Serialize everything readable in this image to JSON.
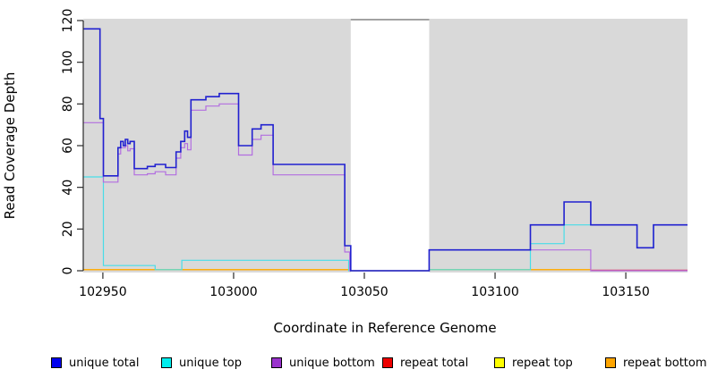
{
  "figure": {
    "xlabel": "Coordinate in Reference Genome",
    "ylabel": "Read Coverage Depth",
    "plot_bg_color": "#d9d9d9",
    "gap_band_color": "#ffffff"
  },
  "legend": {
    "items": [
      {
        "label": "unique total",
        "color": "#0000ee"
      },
      {
        "label": "unique top",
        "color": "#00eeee"
      },
      {
        "label": "unique bottom",
        "color": "#9932cc"
      },
      {
        "label": "repeat total",
        "color": "#ee0000"
      },
      {
        "label": "repeat top",
        "color": "#ffff00"
      },
      {
        "label": "repeat bottom",
        "color": "#ffa500"
      }
    ]
  },
  "chart_data": {
    "type": "line",
    "subtype": "step",
    "title": "",
    "xlabel": "Coordinate in Reference Genome",
    "ylabel": "Read Coverage Depth",
    "xlim": [
      102942.5,
      103173.6
    ],
    "ylim": [
      0,
      120
    ],
    "x_ticks": [
      102950,
      103000,
      103050,
      103100,
      103150
    ],
    "y_ticks": [
      0,
      20,
      40,
      60,
      80,
      100,
      120
    ],
    "grid": false,
    "plot_background": "#d9d9d9",
    "masked_region": {
      "x_start": 103044.8,
      "x_end": 103074.8,
      "color": "#ffffff",
      "note": "white vertical band, coverage 0"
    },
    "legend_position": "bottom",
    "series": [
      {
        "name": "unique total",
        "color": "#2121d0",
        "width": 1.6,
        "z": 6,
        "x_end": 103173.6,
        "points": [
          [
            102942.5,
            116
          ],
          [
            102948.9,
            73
          ],
          [
            102950.2,
            45.5
          ],
          [
            102955.8,
            59
          ],
          [
            102956.8,
            62
          ],
          [
            102957.8,
            60
          ],
          [
            102958.6,
            63
          ],
          [
            102959.5,
            61
          ],
          [
            102960.4,
            62
          ],
          [
            102962,
            49
          ],
          [
            102967,
            50
          ],
          [
            102970,
            51
          ],
          [
            102974,
            49.5
          ],
          [
            102978,
            57
          ],
          [
            102979.8,
            62
          ],
          [
            102981.3,
            67
          ],
          [
            102982.4,
            64
          ],
          [
            102983.7,
            82
          ],
          [
            102989.4,
            83.5
          ],
          [
            102994.5,
            85
          ],
          [
            103001.9,
            60
          ],
          [
            103007.1,
            68
          ],
          [
            103010.5,
            70
          ],
          [
            103015.1,
            51
          ],
          [
            103042.5,
            12
          ],
          [
            103044.8,
            0
          ],
          [
            103074.8,
            10
          ],
          [
            103113.5,
            22
          ],
          [
            103126.4,
            33
          ],
          [
            103136.6,
            22
          ],
          [
            103154.3,
            11
          ],
          [
            103160.6,
            22
          ]
        ]
      },
      {
        "name": "unique top",
        "color": "#48dde8",
        "width": 1.2,
        "z": 4,
        "x_end": 103173.6,
        "points": [
          [
            102942.5,
            45
          ],
          [
            102950.2,
            2.5
          ],
          [
            102970,
            0.5
          ],
          [
            102980.2,
            5
          ],
          [
            103044,
            0
          ],
          [
            103074.8,
            0.5
          ],
          [
            103113.5,
            13
          ],
          [
            103126.4,
            22
          ],
          [
            103154.3,
            11
          ],
          [
            103160.6,
            22
          ]
        ]
      },
      {
        "name": "unique bottom",
        "color": "#b26ee0",
        "width": 1.2,
        "z": 5,
        "x_end": 103173.6,
        "points": [
          [
            102942.5,
            71
          ],
          [
            102950.2,
            42.5
          ],
          [
            102955.8,
            56
          ],
          [
            102956.8,
            59
          ],
          [
            102958.6,
            60
          ],
          [
            102959.5,
            57.5
          ],
          [
            102960.4,
            58.5
          ],
          [
            102962,
            46
          ],
          [
            102967,
            46.5
          ],
          [
            102970,
            47.5
          ],
          [
            102974,
            46
          ],
          [
            102978,
            54
          ],
          [
            102979.8,
            59
          ],
          [
            102981.3,
            61
          ],
          [
            102982.4,
            58
          ],
          [
            102983.7,
            77
          ],
          [
            102989.4,
            79
          ],
          [
            102994.5,
            80
          ],
          [
            103001.9,
            55.5
          ],
          [
            103007.1,
            63
          ],
          [
            103010.5,
            65
          ],
          [
            103015.1,
            46
          ],
          [
            103042.5,
            9
          ],
          [
            103044.4,
            0
          ],
          [
            103074.8,
            10
          ],
          [
            103136.6,
            0
          ]
        ]
      },
      {
        "name": "repeat total",
        "color": "#e23a5f",
        "width": 1.2,
        "z": 3,
        "x_end": 103173.6,
        "points": [
          [
            103136.6,
            0.3
          ]
        ]
      },
      {
        "name": "repeat top",
        "color": "#ffff00",
        "width": 1.2,
        "z": 1,
        "x_end": 103136.6,
        "points": [
          [
            102942.5,
            0.5
          ],
          [
            103044.8,
            0
          ],
          [
            103074.8,
            0.5
          ]
        ]
      },
      {
        "name": "repeat bottom",
        "color": "#ffa500",
        "width": 1.3,
        "z": 2,
        "x_end": 103136.6,
        "points": [
          [
            102942.5,
            0.5
          ],
          [
            103044.8,
            0
          ],
          [
            103074.8,
            0.5
          ]
        ]
      }
    ]
  }
}
